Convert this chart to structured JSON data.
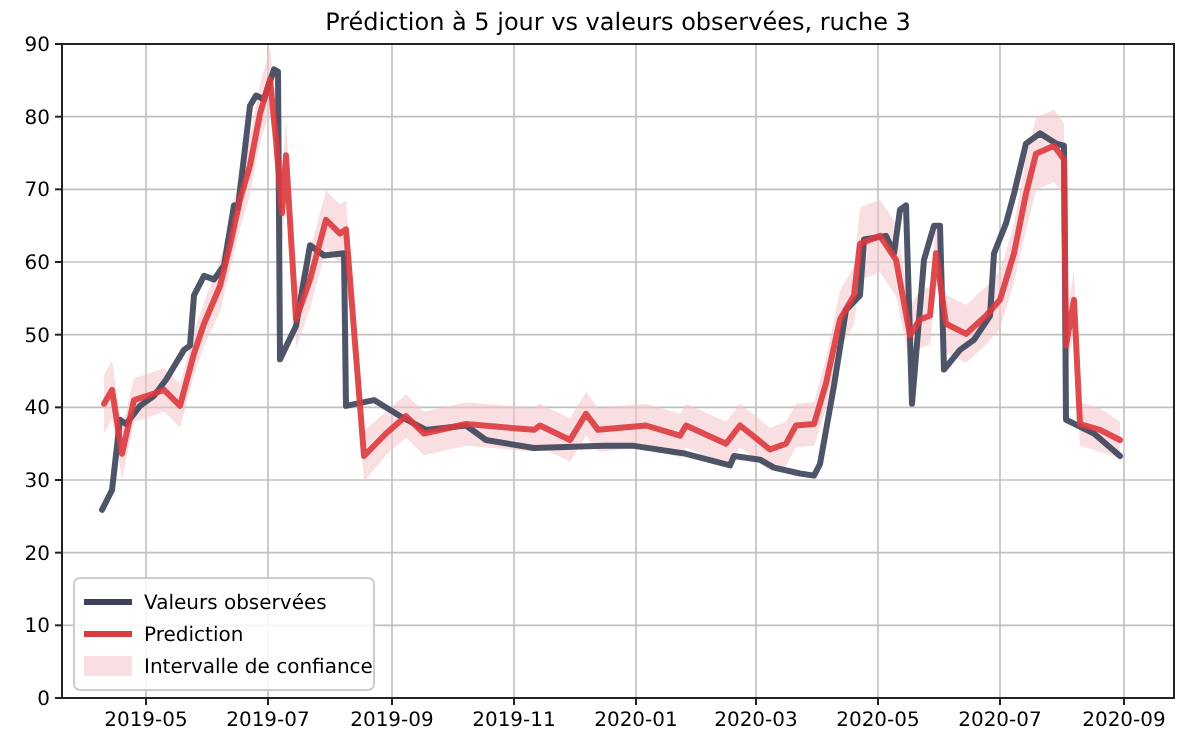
{
  "chart_data": {
    "type": "line",
    "title": "Prédiction à 5 jour vs valeurs observées, ruche 3",
    "xlim": [
      "2019-03-20",
      "2020-09-26"
    ],
    "xticks": [
      "2019-05",
      "2019-07",
      "2019-09",
      "2019-11",
      "2020-01",
      "2020-03",
      "2020-05",
      "2020-07",
      "2020-09"
    ],
    "ylim": [
      0,
      90
    ],
    "yticks": [
      0,
      10,
      20,
      30,
      40,
      50,
      60,
      70,
      80,
      90
    ],
    "grid": true,
    "legend": "bottom left",
    "series": [
      {
        "name": "Valeurs observées",
        "color": "#3b4258",
        "x": [
          "2019-04-09",
          "2019-04-14",
          "2019-04-18",
          "2019-04-21",
          "2019-04-28",
          "2019-05-05",
          "2019-05-11",
          "2019-05-20",
          "2019-05-23",
          "2019-05-25",
          "2019-05-30",
          "2019-06-04",
          "2019-06-09",
          "2019-06-14",
          "2019-06-16",
          "2019-06-22",
          "2019-06-25",
          "2019-06-29",
          "2019-07-04",
          "2019-07-06",
          "2019-07-07",
          "2019-07-15",
          "2019-07-22",
          "2019-07-29",
          "2019-08-08",
          "2019-08-09",
          "2019-08-23",
          "2019-09-05",
          "2019-09-18",
          "2019-10-08",
          "2019-10-18",
          "2019-11-11",
          "2019-12-16",
          "2019-12-31",
          "2020-01-26",
          "2020-02-17",
          "2020-02-19",
          "2020-03-03",
          "2020-03-10",
          "2020-03-23",
          "2020-03-30",
          "2020-04-02",
          "2020-04-09",
          "2020-04-15",
          "2020-04-22",
          "2020-04-24",
          "2020-05-05",
          "2020-05-09",
          "2020-05-12",
          "2020-05-15",
          "2020-05-18",
          "2020-05-24",
          "2020-05-29",
          "2020-06-01",
          "2020-06-03",
          "2020-06-11",
          "2020-06-18",
          "2020-06-26",
          "2020-06-28",
          "2020-07-04",
          "2020-07-08",
          "2020-07-14",
          "2020-07-21",
          "2020-07-29",
          "2020-08-02",
          "2020-08-03",
          "2020-08-17",
          "2020-08-30"
        ],
        "values": [
          25.9,
          28.6,
          38.3,
          37.7,
          40.2,
          41.6,
          43.8,
          47.9,
          48.5,
          55.4,
          58.1,
          57.6,
          59.5,
          67.8,
          67.5,
          81.5,
          82.9,
          82.4,
          86.5,
          86.2,
          46.6,
          51.2,
          62.3,
          60.9,
          61.2,
          40.2,
          41,
          38.8,
          36.9,
          37.5,
          35.5,
          34.4,
          34.7,
          34.7,
          33.6,
          32,
          33.3,
          32.8,
          31.7,
          30.9,
          30.6,
          32.2,
          43,
          53.4,
          55.4,
          63.1,
          63.6,
          61.2,
          67.2,
          67.8,
          40.5,
          60.3,
          65,
          65,
          45.2,
          47.9,
          49.3,
          52.6,
          61.2,
          65.3,
          69.4,
          76.3,
          77.7,
          76.3,
          76,
          38.3,
          36.4,
          33.3
        ]
      },
      {
        "name": "Prediction",
        "color": "#db3a3e",
        "x": [
          "2019-04-10",
          "2019-04-14",
          "2019-04-19",
          "2019-04-25",
          "2019-05-05",
          "2019-05-10",
          "2019-05-18",
          "2019-05-25",
          "2019-05-30",
          "2019-06-07",
          "2019-06-12",
          "2019-06-17",
          "2019-06-22",
          "2019-06-27",
          "2019-07-02",
          "2019-07-05",
          "2019-07-08",
          "2019-07-10",
          "2019-07-15",
          "2019-07-22",
          "2019-07-30",
          "2019-08-06",
          "2019-08-09",
          "2019-08-18",
          "2019-08-29",
          "2019-09-08",
          "2019-09-17",
          "2019-10-08",
          "2019-11-11",
          "2019-11-14",
          "2019-11-29",
          "2019-12-07",
          "2019-12-13",
          "2020-01-06",
          "2020-01-23",
          "2020-01-26",
          "2020-02-15",
          "2020-02-22",
          "2020-03-08",
          "2020-03-16",
          "2020-03-21",
          "2020-03-30",
          "2020-04-05",
          "2020-04-12",
          "2020-04-19",
          "2020-04-22",
          "2020-05-02",
          "2020-05-10",
          "2020-05-17",
          "2020-05-22",
          "2020-05-27",
          "2020-05-30",
          "2020-06-04",
          "2020-06-14",
          "2020-06-24",
          "2020-07-01",
          "2020-07-08",
          "2020-07-14",
          "2020-07-19",
          "2020-07-28",
          "2020-08-02",
          "2020-08-03",
          "2020-08-07",
          "2020-08-10",
          "2020-08-20",
          "2020-08-30"
        ],
        "values": [
          40.5,
          42.4,
          33.6,
          41,
          41.9,
          42.4,
          40.2,
          47.4,
          51.5,
          56.7,
          62.3,
          68.6,
          73.3,
          80.4,
          85.1,
          76.9,
          66.7,
          74.7,
          52.1,
          57.6,
          65.8,
          63.9,
          64.5,
          33.3,
          36.4,
          38.8,
          36.4,
          37.7,
          36.9,
          37.5,
          35.5,
          39.1,
          36.9,
          37.5,
          36.1,
          37.5,
          35,
          37.5,
          34.2,
          35,
          37.5,
          37.7,
          43.3,
          52.1,
          55.4,
          62.5,
          63.6,
          60.3,
          49.9,
          52.1,
          52.6,
          61.2,
          51.5,
          50.1,
          52.6,
          54.8,
          61.2,
          69.4,
          74.9,
          76,
          74.1,
          48.5,
          54.8,
          37.7,
          36.9,
          35.5
        ],
        "lower": [
          36.5,
          38.4,
          30.1,
          38,
          38.9,
          39.4,
          37.2,
          44.4,
          48.5,
          53.2,
          58.8,
          64.6,
          69.3,
          76.4,
          80.6,
          71.9,
          61.7,
          69.7,
          48.1,
          53.6,
          61.8,
          59.9,
          60.5,
          29.8,
          33.4,
          35.8,
          33.4,
          34.7,
          33.9,
          34.5,
          32.5,
          36.1,
          33.9,
          34.5,
          33.1,
          34.5,
          32,
          34.5,
          31.2,
          32,
          34.5,
          34.7,
          39.8,
          48.1,
          51.4,
          57.5,
          58.6,
          55.3,
          45.9,
          48.1,
          48.6,
          57.2,
          47.5,
          46.1,
          48.6,
          50.8,
          57.2,
          64.4,
          69.9,
          71,
          69.1,
          44.5,
          50.8,
          34.7,
          33.9,
          33
        ],
        "upper": [
          44.5,
          46.4,
          37.1,
          44,
          44.9,
          45.4,
          43.2,
          50.4,
          54.5,
          60.2,
          65.8,
          72.6,
          77.3,
          84.4,
          89.6,
          81.9,
          71.7,
          79.7,
          56.1,
          61.6,
          69.8,
          67.9,
          68.5,
          36.8,
          39.4,
          41.8,
          39.4,
          40.7,
          39.9,
          40.5,
          38.5,
          42.1,
          39.9,
          40.5,
          39.1,
          40.5,
          38,
          40.5,
          37.2,
          38,
          40.5,
          40.7,
          46.8,
          56.1,
          59.4,
          67.5,
          68.6,
          65.3,
          53.9,
          56.1,
          56.6,
          65.2,
          55.5,
          54.1,
          56.6,
          58.8,
          65.2,
          74.4,
          79.9,
          81,
          79.1,
          52.5,
          58.8,
          40.7,
          39.9,
          38
        ]
      },
      {
        "name": "Intervalle de confiance",
        "type": "area",
        "color": "#f4c4cb"
      }
    ]
  }
}
